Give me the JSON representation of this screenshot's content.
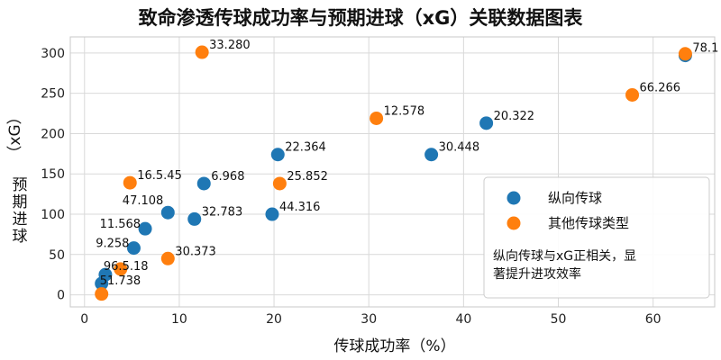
{
  "chart_data": {
    "type": "scatter",
    "title": "致命渗透传球成功率与预期进球（xG）关联数据图表",
    "xlabel": "传球成功率（%）",
    "ylabel": "预期进球（xG）",
    "xlim": [
      -1.5,
      66.5
    ],
    "ylim": [
      -15,
      320
    ],
    "xticks": [
      0,
      10,
      20,
      30,
      40,
      50,
      60
    ],
    "yticks": [
      0,
      50,
      100,
      150,
      200,
      250,
      300
    ],
    "grid": true,
    "legend_position": "lower-right",
    "series": [
      {
        "name": "纵向传球",
        "color": "#1f77b4",
        "points": [
          {
            "x": 1.8,
            "y": 14,
            "label": "51.738"
          },
          {
            "x": 2.2,
            "y": 25,
            "label": "96.5.18"
          },
          {
            "x": 5.2,
            "y": 58,
            "label": "9.258"
          },
          {
            "x": 6.4,
            "y": 82,
            "label": "11.568"
          },
          {
            "x": 8.8,
            "y": 102,
            "label": "47.108"
          },
          {
            "x": 11.6,
            "y": 94,
            "label": "32.783"
          },
          {
            "x": 12.6,
            "y": 138,
            "label": "6.968"
          },
          {
            "x": 19.8,
            "y": 100,
            "label": "44.316"
          },
          {
            "x": 20.4,
            "y": 174,
            "label": "22.364"
          },
          {
            "x": 36.6,
            "y": 174,
            "label": "30.448"
          },
          {
            "x": 42.4,
            "y": 213,
            "label": "20.322"
          },
          {
            "x": 63.4,
            "y": 297,
            "label": "78.1"
          }
        ]
      },
      {
        "name": "其他传球类型",
        "color": "#ff7f0e",
        "points": [
          {
            "x": 1.8,
            "y": 1,
            "label": ""
          },
          {
            "x": 3.8,
            "y": 32,
            "label": ""
          },
          {
            "x": 4.8,
            "y": 139,
            "label": "16.5.45"
          },
          {
            "x": 8.8,
            "y": 45,
            "label": "30.373"
          },
          {
            "x": 12.4,
            "y": 301,
            "label": "33.280"
          },
          {
            "x": 20.6,
            "y": 138,
            "label": "25.852"
          },
          {
            "x": 30.8,
            "y": 219,
            "label": "12.578"
          },
          {
            "x": 57.8,
            "y": 248,
            "label": "66.266"
          },
          {
            "x": 63.4,
            "y": 299,
            "label": ""
          }
        ]
      }
    ],
    "annotation": [
      "纵向传球与xG正相关，显",
      "著提升进攻效率"
    ]
  }
}
